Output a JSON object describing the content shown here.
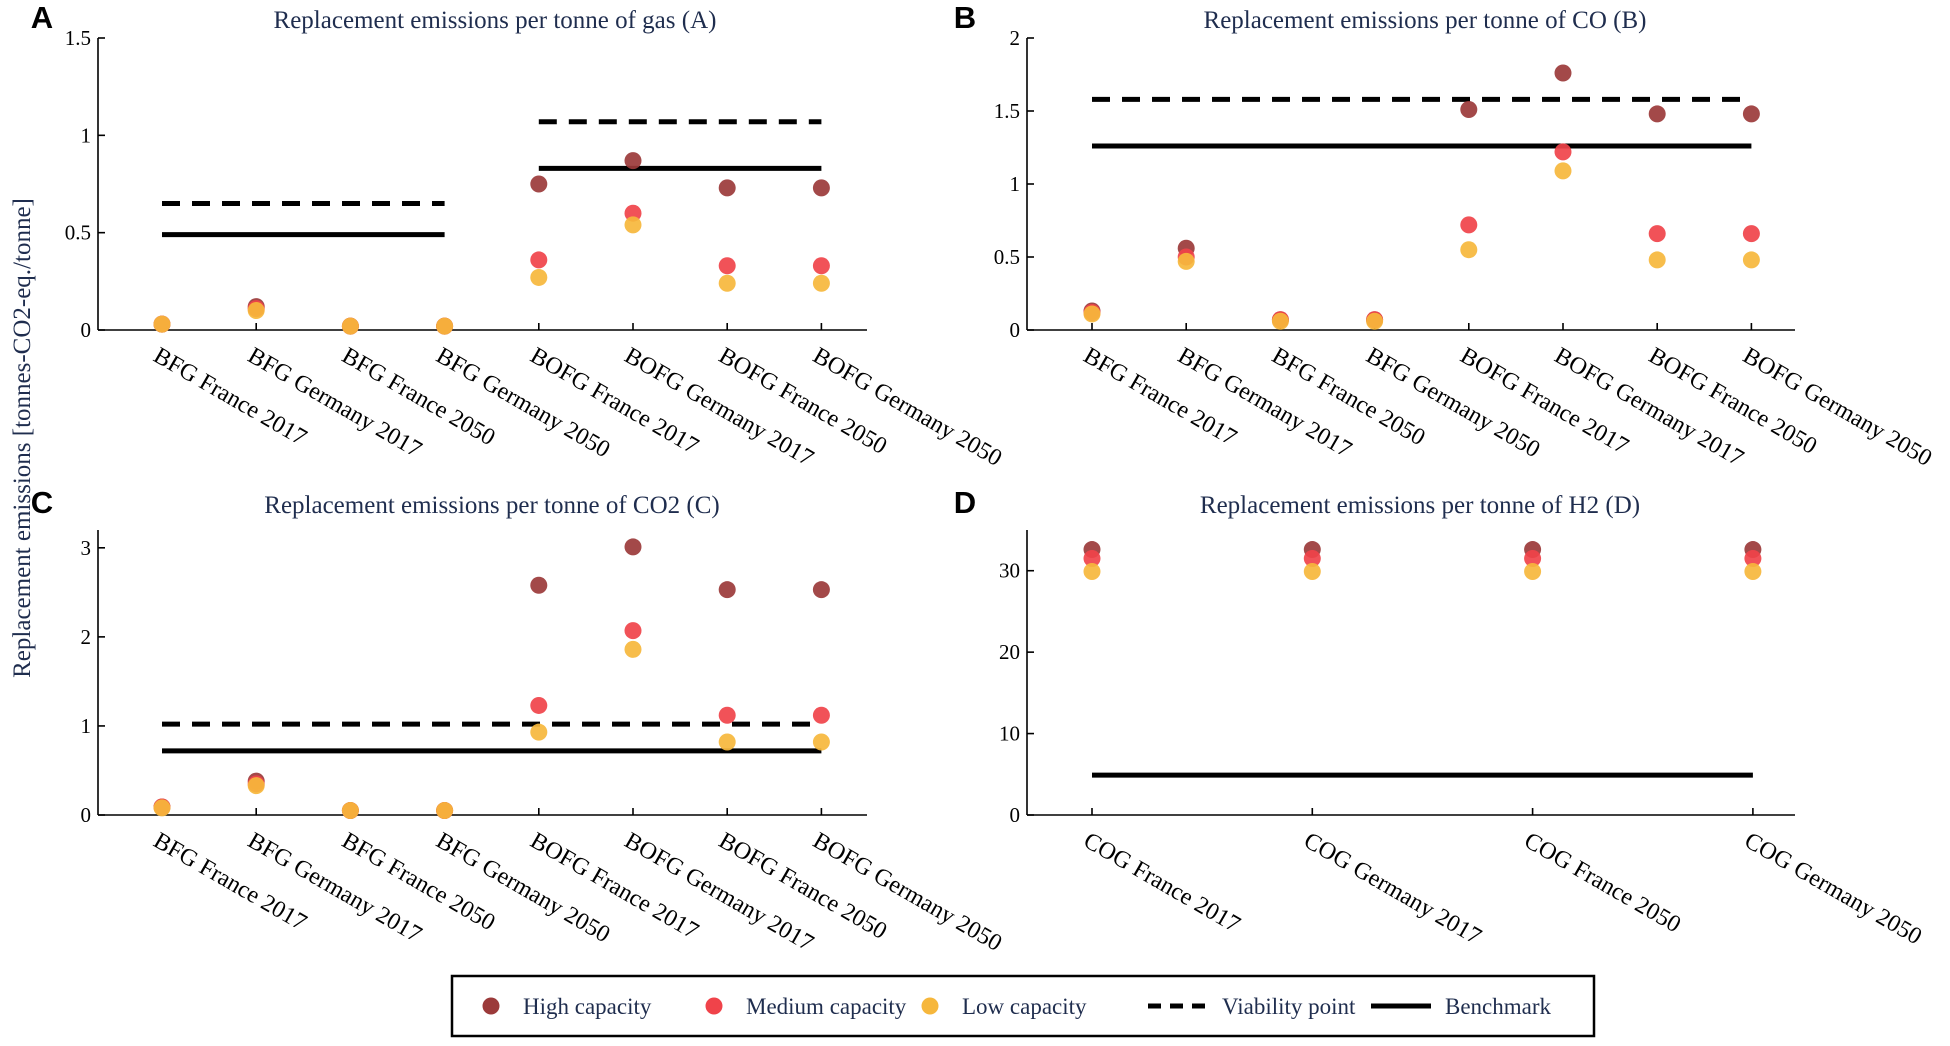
{
  "figure": {
    "ylabel": "Replacement emissions [tonnes-CO2-eq./tonne]"
  },
  "legend": {
    "items": [
      {
        "label": "High capacity",
        "kind": "dot",
        "color": "#9b3a3a"
      },
      {
        "label": "Medium capacity",
        "kind": "dot",
        "color": "#f0434a"
      },
      {
        "label": "Low capacity",
        "kind": "dot",
        "color": "#f6b73c"
      },
      {
        "label": "Viability point",
        "kind": "dash",
        "color": "#000000"
      },
      {
        "label": "Benchmark",
        "kind": "solid",
        "color": "#000000"
      }
    ]
  },
  "colors": {
    "high": "#9b3a3a",
    "medium": "#f0434a",
    "low": "#f6b73c",
    "line": "#000000"
  },
  "chart_data": [
    {
      "panel": "A",
      "type": "scatter",
      "title": "Replacement emissions per tonne of gas (A)",
      "categories": [
        "BFG France 2017",
        "BFG Germany 2017",
        "BFG France 2050",
        "BFG Germany 2050",
        "BOFG France 2017",
        "BOFG Germany 2017",
        "BOFG France 2050",
        "BOFG Germany 2050"
      ],
      "ylim": [
        0,
        1.5
      ],
      "yticks": [
        0,
        0.5,
        1,
        1.5
      ],
      "series": [
        {
          "name": "High capacity",
          "values": [
            0.03,
            0.12,
            0.02,
            0.02,
            0.75,
            0.87,
            0.73,
            0.73
          ]
        },
        {
          "name": "Medium capacity",
          "values": [
            0.03,
            0.11,
            0.02,
            0.02,
            0.36,
            0.6,
            0.33,
            0.33
          ]
        },
        {
          "name": "Low capacity",
          "values": [
            0.03,
            0.1,
            0.02,
            0.02,
            0.27,
            0.54,
            0.24,
            0.24
          ]
        }
      ],
      "lines": [
        {
          "name": "Viability point",
          "style": "dashed",
          "y": 0.65,
          "from": 0,
          "to": 3
        },
        {
          "name": "Benchmark",
          "style": "solid",
          "y": 0.49,
          "from": 0,
          "to": 3
        },
        {
          "name": "Viability point",
          "style": "dashed",
          "y": 1.07,
          "from": 4,
          "to": 7
        },
        {
          "name": "Benchmark",
          "style": "solid",
          "y": 0.83,
          "from": 4,
          "to": 7
        }
      ]
    },
    {
      "panel": "B",
      "type": "scatter",
      "title": "Replacement emissions per tonne of CO (B)",
      "categories": [
        "BFG France 2017",
        "BFG Germany 2017",
        "BFG France 2050",
        "BFG Germany 2050",
        "BOFG France 2017",
        "BOFG Germany 2017",
        "BOFG France 2050",
        "BOFG Germany 2050"
      ],
      "ylim": [
        0,
        2
      ],
      "yticks": [
        0,
        0.5,
        1,
        1.5,
        2
      ],
      "series": [
        {
          "name": "High capacity",
          "values": [
            0.13,
            0.56,
            0.07,
            0.07,
            1.51,
            1.76,
            1.48,
            1.48
          ]
        },
        {
          "name": "Medium capacity",
          "values": [
            0.12,
            0.5,
            0.07,
            0.07,
            0.72,
            1.22,
            0.66,
            0.66
          ]
        },
        {
          "name": "Low capacity",
          "values": [
            0.11,
            0.47,
            0.06,
            0.06,
            0.55,
            1.09,
            0.48,
            0.48
          ]
        }
      ],
      "lines": [
        {
          "name": "Viability point",
          "style": "dashed",
          "y": 1.58,
          "from": 0,
          "to": 7
        },
        {
          "name": "Benchmark",
          "style": "solid",
          "y": 1.26,
          "from": 0,
          "to": 7
        }
      ]
    },
    {
      "panel": "C",
      "type": "scatter",
      "title": "Replacement emissions per tonne of CO2 (C)",
      "categories": [
        "BFG France 2017",
        "BFG Germany 2017",
        "BFG France 2050",
        "BFG Germany 2050",
        "BOFG France 2017",
        "BOFG Germany 2017",
        "BOFG France 2050",
        "BOFG Germany 2050"
      ],
      "ylim": [
        0,
        3.2
      ],
      "yticks": [
        0,
        1,
        2,
        3
      ],
      "series": [
        {
          "name": "High capacity",
          "values": [
            0.09,
            0.38,
            0.05,
            0.05,
            2.58,
            3.01,
            2.53,
            2.53
          ]
        },
        {
          "name": "Medium capacity",
          "values": [
            0.09,
            0.35,
            0.05,
            0.05,
            1.23,
            2.07,
            1.12,
            1.12
          ]
        },
        {
          "name": "Low capacity",
          "values": [
            0.08,
            0.33,
            0.05,
            0.05,
            0.93,
            1.86,
            0.82,
            0.82
          ]
        }
      ],
      "lines": [
        {
          "name": "Viability point",
          "style": "dashed",
          "y": 1.02,
          "from": 0,
          "to": 7
        },
        {
          "name": "Benchmark",
          "style": "solid",
          "y": 0.72,
          "from": 0,
          "to": 7
        }
      ]
    },
    {
      "panel": "D",
      "type": "scatter",
      "title": "Replacement emissions per tonne of H2 (D)",
      "categories": [
        "COG France 2017",
        "COG Germany 2017",
        "COG France 2050",
        "COG Germany 2050"
      ],
      "ylim": [
        0,
        35
      ],
      "yticks": [
        0,
        10,
        20,
        30
      ],
      "series": [
        {
          "name": "High capacity",
          "values": [
            32.6,
            32.6,
            32.6,
            32.6
          ]
        },
        {
          "name": "Medium capacity",
          "values": [
            31.5,
            31.5,
            31.5,
            31.5
          ]
        },
        {
          "name": "Low capacity",
          "values": [
            29.9,
            29.9,
            29.9,
            29.9
          ]
        }
      ],
      "lines": [
        {
          "name": "Benchmark",
          "style": "solid",
          "y": 4.9,
          "from": 0,
          "to": 3
        }
      ]
    }
  ]
}
